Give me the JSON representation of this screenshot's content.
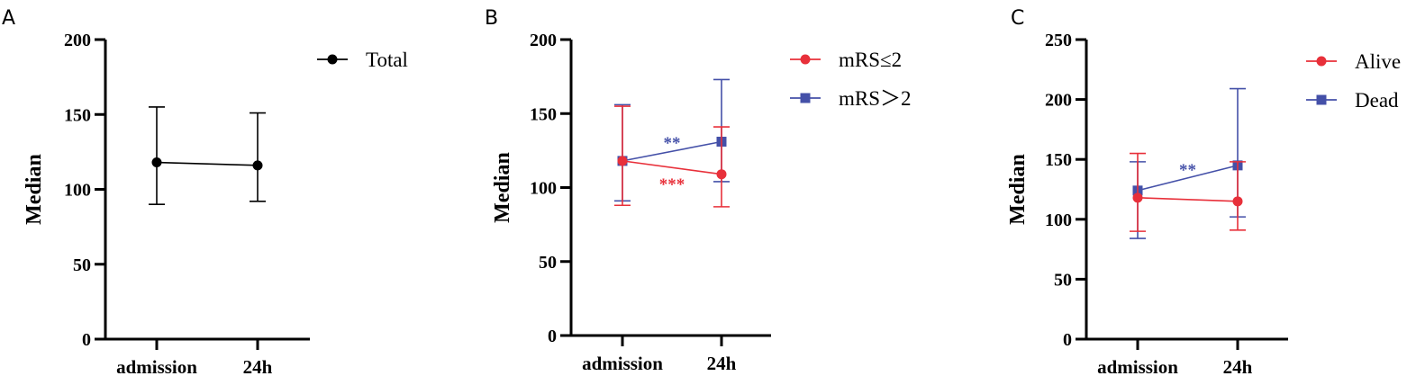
{
  "chart_data": [
    {
      "panel": "A",
      "type": "line",
      "categories": [
        "admission",
        "24h"
      ],
      "ylabel": "Median",
      "ylim": [
        0,
        200
      ],
      "yticks": [
        0,
        50,
        100,
        150,
        200
      ],
      "legend_position": "top-right",
      "series": [
        {
          "name": "Total",
          "color": "#000000",
          "marker": "circle",
          "values": [
            118,
            116
          ],
          "err_low": [
            90,
            92
          ],
          "err_high": [
            155,
            151
          ]
        }
      ],
      "annotations": []
    },
    {
      "panel": "B",
      "type": "line",
      "categories": [
        "admission",
        "24h"
      ],
      "ylabel": "Median",
      "ylim": [
        0,
        200
      ],
      "yticks": [
        0,
        50,
        100,
        150,
        200
      ],
      "legend_position": "top-right",
      "series": [
        {
          "name": "mRS≤2",
          "color": "#e8303a",
          "marker": "circle",
          "values": [
            118,
            109
          ],
          "err_low": [
            88,
            87
          ],
          "err_high": [
            155,
            141
          ]
        },
        {
          "name": "mRS＞2",
          "color": "#4450a8",
          "marker": "square",
          "values": [
            118,
            131
          ],
          "err_low": [
            91,
            104
          ],
          "err_high": [
            156,
            173
          ]
        }
      ],
      "annotations": [
        {
          "text": "**",
          "color": "#4450a8",
          "x": 0.5,
          "y": 130
        },
        {
          "text": "***",
          "color": "#e8303a",
          "x": 0.5,
          "y": 102
        }
      ]
    },
    {
      "panel": "C",
      "type": "line",
      "categories": [
        "admission",
        "24h"
      ],
      "ylabel": "Median",
      "ylim": [
        0,
        250
      ],
      "yticks": [
        0,
        50,
        100,
        150,
        200,
        250
      ],
      "legend_position": "top-right",
      "series": [
        {
          "name": "Alive",
          "color": "#e8303a",
          "marker": "circle",
          "values": [
            118,
            115
          ],
          "err_low": [
            90,
            91
          ],
          "err_high": [
            155,
            148
          ]
        },
        {
          "name": "Dead",
          "color": "#4450a8",
          "marker": "square",
          "values": [
            124,
            145
          ],
          "err_low": [
            84,
            102
          ],
          "err_high": [
            148,
            209
          ]
        }
      ],
      "annotations": [
        {
          "text": "**",
          "color": "#4450a8",
          "x": 0.5,
          "y": 141
        }
      ]
    }
  ]
}
